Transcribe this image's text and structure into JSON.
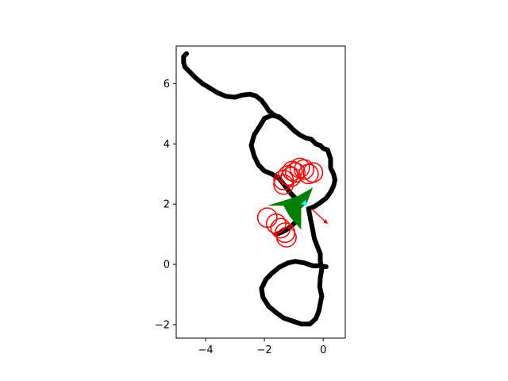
{
  "chart_data": {
    "type": "scatter",
    "title": "",
    "xlabel": "",
    "ylabel": "",
    "xlim": [
      -5.0,
      0.75
    ],
    "ylim": [
      -2.45,
      7.25
    ],
    "aspect": "equal",
    "grid": false,
    "x_ticks": [
      -4,
      -2,
      0
    ],
    "x_tick_labels": [
      "−4",
      "−2",
      "0"
    ],
    "y_ticks": [
      -2,
      0,
      2,
      4,
      6
    ],
    "y_tick_labels": [
      "−2",
      "0",
      "2",
      "4",
      "6"
    ],
    "colors": {
      "path": "#000000",
      "circles": "#ff0000",
      "wedge": "#008000",
      "highlight": "#00ffff",
      "arrow": "#ff0000"
    },
    "series": [
      {
        "type": "path",
        "points": [
          [
            -4.65,
            7.0
          ],
          [
            -4.75,
            6.9
          ],
          [
            -4.75,
            6.7
          ],
          [
            -4.7,
            6.55
          ],
          [
            -4.55,
            6.4
          ],
          [
            -4.35,
            6.2
          ],
          [
            -4.1,
            6.0
          ],
          [
            -3.85,
            5.85
          ],
          [
            -3.6,
            5.7
          ],
          [
            -3.3,
            5.58
          ],
          [
            -3.0,
            5.55
          ],
          [
            -2.75,
            5.62
          ],
          [
            -2.5,
            5.65
          ],
          [
            -2.3,
            5.6
          ],
          [
            -2.1,
            5.45
          ],
          [
            -1.95,
            5.25
          ],
          [
            -1.85,
            5.1
          ],
          [
            -1.7,
            4.98
          ],
          [
            -1.45,
            4.85
          ],
          [
            -1.2,
            4.65
          ],
          [
            -1.0,
            4.45
          ],
          [
            -0.8,
            4.3
          ],
          [
            -0.6,
            4.2
          ],
          [
            -0.4,
            4.15
          ],
          [
            -0.25,
            4.0
          ],
          [
            -0.1,
            3.95
          ],
          [
            0.0,
            3.85
          ],
          [
            0.15,
            3.8
          ],
          [
            0.25,
            3.5
          ],
          [
            0.25,
            3.2
          ],
          [
            0.35,
            3.0
          ],
          [
            0.4,
            2.8
          ],
          [
            0.35,
            2.6
          ],
          [
            0.25,
            2.4
          ],
          [
            0.1,
            2.2
          ],
          [
            -0.1,
            2.05
          ],
          [
            -0.3,
            1.92
          ],
          [
            -0.5,
            1.85
          ],
          [
            -0.45,
            1.6
          ],
          [
            -0.4,
            1.35
          ],
          [
            -0.35,
            1.1
          ],
          [
            -0.3,
            0.85
          ],
          [
            -0.2,
            0.6
          ],
          [
            -0.1,
            0.35
          ],
          [
            -0.1,
            0.1
          ],
          [
            -0.05,
            -0.15
          ],
          [
            -0.1,
            -0.45
          ],
          [
            -0.12,
            -0.75
          ],
          [
            -0.05,
            -1.05
          ],
          [
            -0.1,
            -1.3
          ],
          [
            -0.15,
            -1.55
          ],
          [
            -0.25,
            -1.8
          ],
          [
            -0.45,
            -1.98
          ],
          [
            -0.75,
            -1.98
          ],
          [
            -1.05,
            -1.88
          ],
          [
            -1.35,
            -1.78
          ],
          [
            -1.6,
            -1.6
          ],
          [
            -1.85,
            -1.4
          ],
          [
            -2.05,
            -1.1
          ],
          [
            -2.1,
            -0.8
          ],
          [
            -1.95,
            -0.5
          ],
          [
            -1.75,
            -0.3
          ],
          [
            -1.5,
            -0.1
          ],
          [
            -1.2,
            0.05
          ],
          [
            -0.95,
            0.1
          ],
          [
            -0.65,
            0.05
          ],
          [
            -0.35,
            -0.05
          ],
          [
            -0.1,
            -0.05
          ],
          [
            0.1,
            -0.08
          ]
        ]
      },
      {
        "type": "path",
        "points": [
          [
            -0.95,
            4.4
          ],
          [
            -1.2,
            4.65
          ],
          [
            -1.5,
            4.9
          ],
          [
            -1.75,
            4.95
          ],
          [
            -2.0,
            4.85
          ],
          [
            -2.15,
            4.6
          ],
          [
            -2.35,
            4.3
          ],
          [
            -2.45,
            3.95
          ],
          [
            -2.35,
            3.6
          ],
          [
            -2.2,
            3.3
          ],
          [
            -2.0,
            3.1
          ],
          [
            -1.75,
            3.0
          ],
          [
            -1.5,
            2.85
          ],
          [
            -1.3,
            2.6
          ],
          [
            -1.1,
            2.35
          ],
          [
            -0.9,
            2.15
          ],
          [
            -0.75,
            2.0
          ]
        ]
      },
      {
        "type": "path",
        "points": [
          [
            -0.9,
            1.45
          ],
          [
            -1.05,
            1.3
          ],
          [
            -1.25,
            1.15
          ],
          [
            -1.45,
            1.05
          ],
          [
            -1.6,
            1.0
          ]
        ]
      },
      {
        "type": "circles",
        "radius": 0.33,
        "centers": [
          [
            -1.35,
            2.8
          ],
          [
            -1.1,
            2.9
          ],
          [
            -0.95,
            3.05
          ],
          [
            -0.8,
            3.2
          ],
          [
            -0.65,
            3.15
          ],
          [
            -0.5,
            3.0
          ],
          [
            -0.35,
            3.05
          ],
          [
            -1.05,
            3.1
          ],
          [
            -1.2,
            2.95
          ],
          [
            -1.35,
            2.65
          ],
          [
            -1.9,
            1.55
          ],
          [
            -1.6,
            1.35
          ],
          [
            -1.45,
            1.2
          ],
          [
            -1.3,
            1.05
          ],
          [
            -1.25,
            0.9
          ]
        ]
      },
      {
        "type": "wedge",
        "points": [
          [
            -1.9,
            1.95
          ],
          [
            -0.9,
            2.25
          ],
          [
            -0.35,
            2.55
          ],
          [
            -0.55,
            2.05
          ],
          [
            -0.75,
            1.85
          ],
          [
            -0.75,
            1.5
          ],
          [
            -0.75,
            1.15
          ],
          [
            -1.15,
            1.6
          ],
          [
            -1.35,
            1.95
          ]
        ]
      },
      {
        "type": "highlight",
        "points": [
          [
            -0.75,
            2.0
          ],
          [
            -0.6,
            2.15
          ],
          [
            -0.55,
            1.95
          ]
        ]
      },
      {
        "type": "arrow",
        "from": [
          -0.4,
          1.85
        ],
        "to": [
          0.15,
          1.35
        ]
      }
    ]
  }
}
